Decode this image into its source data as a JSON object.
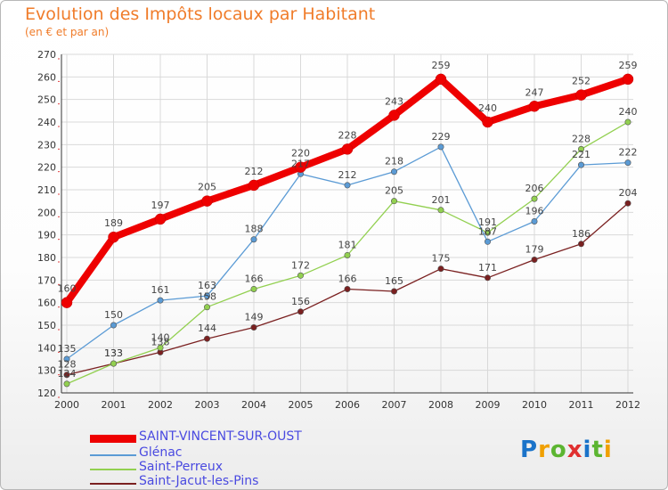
{
  "header": {
    "title": "Evolution des Impôts locaux par Habitant",
    "subtitle": "(en € et par an)"
  },
  "logo": {
    "text": "Proxiti"
  },
  "colors": {
    "title": "#f07c2a",
    "legend_text": "#4a4ae0",
    "grid": "#d9d9d9",
    "axis": "#333333"
  },
  "chart_data": {
    "type": "line",
    "title": "Evolution des Impôts locaux par Habitant",
    "subtitle": "(en € et par an)",
    "xlabel": "",
    "ylabel": "",
    "x": [
      "2000",
      "2001",
      "2002",
      "2003",
      "2004",
      "2005",
      "2006",
      "2007",
      "2008",
      "2009",
      "2010",
      "2011",
      "2012"
    ],
    "ylim": [
      120,
      270
    ],
    "yticks": [
      120,
      130,
      140,
      150,
      160,
      170,
      180,
      190,
      200,
      210,
      220,
      230,
      240,
      250,
      260,
      270
    ],
    "grid": true,
    "legend_position": "bottom-left",
    "series": [
      {
        "name": "SAINT-VINCENT-SUR-OUST",
        "color": "#ee0000",
        "stroke": "thick",
        "values": [
          160,
          189,
          197,
          205,
          212,
          220,
          228,
          243,
          259,
          240,
          247,
          252,
          259
        ],
        "labels": [
          "160",
          "189",
          "197",
          "205",
          "212",
          "220",
          "228",
          "243",
          "259",
          "240",
          "247",
          "252",
          "259"
        ]
      },
      {
        "name": "Glénac",
        "color": "#5b9bd5",
        "stroke": "thin",
        "values": [
          135,
          150,
          161,
          163,
          188,
          217,
          212,
          218,
          229,
          187,
          196,
          221,
          222
        ],
        "labels": [
          "135",
          "150",
          "161",
          "163",
          "188",
          "217",
          "212",
          "218",
          "229",
          "187",
          "196",
          "221",
          "222"
        ]
      },
      {
        "name": "Saint-Perreux",
        "color": "#92d050",
        "stroke": "thin",
        "values": [
          124,
          133,
          140,
          158,
          166,
          172,
          181,
          205,
          201,
          191,
          206,
          228,
          240
        ],
        "labels": [
          "124",
          "133",
          "140",
          "158",
          "166",
          "172",
          "181",
          "205",
          "201",
          "191",
          "206",
          "228",
          "240"
        ]
      },
      {
        "name": "Saint-Jacut-les-Pins",
        "color": "#7a2020",
        "stroke": "thin",
        "values": [
          128,
          133,
          138,
          144,
          149,
          156,
          166,
          165,
          175,
          171,
          179,
          186,
          204
        ],
        "labels": [
          "128",
          "133",
          "138",
          "144",
          "149",
          "156",
          "166",
          "165",
          "175",
          "171",
          "179",
          "186",
          "204"
        ]
      }
    ]
  }
}
